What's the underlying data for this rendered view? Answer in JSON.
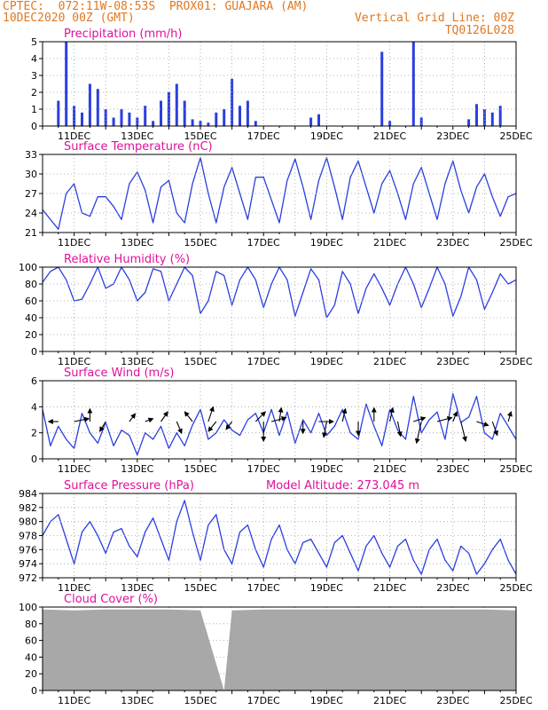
{
  "header": {
    "line1_left": "CPTEC:  072:11W-08:53S  PROX01: GUAJARA (AM)",
    "line2_left": "10DEC2020 00Z (GMT)",
    "line2_right": "Vertical Grid Line: 00Z",
    "line3_right": "TQ0126L028"
  },
  "colors": {
    "header_text": "#e07820",
    "title_text": "#e0109c",
    "series_line": "#2a3fe0",
    "wind_arrow": "#000000",
    "cloud_fill": "#a8a8a8",
    "grid": "#a0a0a0"
  },
  "x_axis": {
    "start": "10DEC",
    "end": "25DEC",
    "ticks": [
      "11DEC",
      "13DEC",
      "15DEC",
      "17DEC",
      "19DEC",
      "21DEC",
      "23DEC",
      "25DEC"
    ]
  },
  "chart_data": [
    {
      "id": "precip",
      "type": "bar",
      "title": "Precipitation (mm/h)",
      "ylim": [
        0,
        5
      ],
      "yticks": [
        0,
        1,
        2,
        3,
        4,
        5
      ],
      "grid": true,
      "x": [
        "10DEC 12Z",
        "10DEC 18Z",
        "11DEC 00Z",
        "11DEC 06Z",
        "11DEC 12Z",
        "11DEC 18Z",
        "12DEC 00Z",
        "12DEC 06Z",
        "12DEC 12Z",
        "12DEC 18Z",
        "13DEC 00Z",
        "13DEC 06Z",
        "13DEC 12Z",
        "13DEC 18Z",
        "14DEC 00Z",
        "14DEC 06Z",
        "14DEC 12Z",
        "14DEC 18Z",
        "15DEC 00Z",
        "15DEC 06Z",
        "15DEC 12Z",
        "15DEC 18Z",
        "16DEC 00Z",
        "16DEC 06Z",
        "16DEC 12Z",
        "16DEC 18Z",
        "18DEC 12Z",
        "18DEC 18Z",
        "20DEC 18Z",
        "21DEC 00Z",
        "21DEC 18Z",
        "22DEC 00Z",
        "23DEC 12Z",
        "23DEC 18Z",
        "24DEC 00Z",
        "24DEC 06Z",
        "24DEC 12Z"
      ],
      "values": [
        1.5,
        5.0,
        1.2,
        0.8,
        2.5,
        2.2,
        1.0,
        0.5,
        1.0,
        0.8,
        0.5,
        1.2,
        0.3,
        1.5,
        2.0,
        2.5,
        1.5,
        0.4,
        0.3,
        0.2,
        0.8,
        1.0,
        2.8,
        1.2,
        1.5,
        0.3,
        0.5,
        0.7,
        4.4,
        0.3,
        5.0,
        0.5,
        0.4,
        1.3,
        1.0,
        0.8,
        1.2
      ]
    },
    {
      "id": "temp",
      "type": "line",
      "title": "Surface Temperature (nC)",
      "ylim": [
        21,
        33
      ],
      "yticks": [
        21,
        24,
        27,
        30,
        33
      ],
      "grid": true,
      "x": [
        "10DEC 00Z",
        "10DEC 12Z",
        "10DEC 18Z",
        "11DEC 00Z",
        "11DEC 06Z",
        "11DEC 12Z",
        "11DEC 18Z",
        "12DEC 00Z",
        "12DEC 06Z",
        "12DEC 12Z",
        "12DEC 18Z",
        "13DEC 00Z",
        "13DEC 06Z",
        "13DEC 12Z",
        "13DEC 18Z",
        "14DEC 00Z",
        "14DEC 06Z",
        "14DEC 12Z",
        "14DEC 18Z",
        "15DEC 00Z",
        "15DEC 06Z",
        "15DEC 12Z",
        "15DEC 18Z",
        "16DEC 00Z",
        "16DEC 06Z",
        "16DEC 12Z",
        "16DEC 18Z",
        "17DEC 00Z",
        "17DEC 06Z",
        "17DEC 12Z",
        "17DEC 18Z",
        "18DEC 00Z",
        "18DEC 06Z",
        "18DEC 12Z",
        "18DEC 18Z",
        "19DEC 00Z",
        "19DEC 06Z",
        "19DEC 12Z",
        "19DEC 18Z",
        "20DEC 00Z",
        "20DEC 06Z",
        "20DEC 12Z",
        "20DEC 18Z",
        "21DEC 00Z",
        "21DEC 06Z",
        "21DEC 12Z",
        "21DEC 18Z",
        "22DEC 00Z",
        "22DEC 06Z",
        "22DEC 12Z",
        "22DEC 18Z",
        "23DEC 00Z",
        "23DEC 06Z",
        "23DEC 12Z",
        "23DEC 18Z",
        "24DEC 00Z",
        "24DEC 06Z",
        "24DEC 12Z",
        "24DEC 18Z",
        "25DEC 00Z"
      ],
      "values": [
        24.5,
        21.5,
        27.0,
        28.5,
        24.0,
        23.5,
        26.5,
        26.5,
        25.0,
        23.0,
        28.5,
        30.3,
        27.5,
        22.5,
        28.0,
        29.0,
        24.0,
        22.5,
        28.5,
        32.5,
        27.0,
        22.5,
        28.0,
        31.0,
        27.0,
        23.0,
        29.5,
        29.5,
        26.0,
        22.5,
        29.0,
        32.3,
        28.0,
        23.0,
        29.0,
        32.5,
        28.0,
        23.0,
        29.5,
        32.0,
        28.0,
        24.0,
        28.5,
        30.5,
        27.0,
        23.0,
        28.5,
        31.0,
        27.0,
        23.0,
        28.5,
        32.0,
        27.5,
        24.0,
        28.0,
        30.0,
        26.5,
        23.5,
        26.5,
        27.0
      ]
    },
    {
      "id": "rh",
      "type": "line",
      "title": "Relative Humidity (%)",
      "ylim": [
        0,
        100
      ],
      "yticks": [
        0,
        20,
        40,
        60,
        80,
        100
      ],
      "grid": true,
      "x": [
        "10DEC 00Z",
        "10DEC 06Z",
        "10DEC 12Z",
        "10DEC 18Z",
        "11DEC 00Z",
        "11DEC 06Z",
        "11DEC 12Z",
        "11DEC 18Z",
        "12DEC 00Z",
        "12DEC 06Z",
        "12DEC 12Z",
        "12DEC 18Z",
        "13DEC 00Z",
        "13DEC 06Z",
        "13DEC 12Z",
        "13DEC 18Z",
        "14DEC 00Z",
        "14DEC 06Z",
        "14DEC 12Z",
        "14DEC 18Z",
        "15DEC 00Z",
        "15DEC 06Z",
        "15DEC 12Z",
        "15DEC 18Z",
        "16DEC 00Z",
        "16DEC 06Z",
        "16DEC 12Z",
        "16DEC 18Z",
        "17DEC 00Z",
        "17DEC 06Z",
        "17DEC 12Z",
        "17DEC 18Z",
        "18DEC 00Z",
        "18DEC 06Z",
        "18DEC 12Z",
        "18DEC 18Z",
        "19DEC 00Z",
        "19DEC 06Z",
        "19DEC 12Z",
        "19DEC 18Z",
        "20DEC 00Z",
        "20DEC 06Z",
        "20DEC 12Z",
        "20DEC 18Z",
        "21DEC 00Z",
        "21DEC 06Z",
        "21DEC 12Z",
        "21DEC 18Z",
        "22DEC 00Z",
        "22DEC 06Z",
        "22DEC 12Z",
        "22DEC 18Z",
        "23DEC 00Z",
        "23DEC 06Z",
        "23DEC 12Z",
        "23DEC 18Z",
        "24DEC 00Z",
        "24DEC 06Z",
        "24DEC 12Z",
        "24DEC 18Z",
        "25DEC 00Z"
      ],
      "values": [
        82,
        95,
        100,
        85,
        60,
        62,
        80,
        100,
        75,
        80,
        100,
        85,
        60,
        70,
        98,
        95,
        60,
        80,
        100,
        90,
        45,
        60,
        95,
        90,
        55,
        85,
        100,
        85,
        52,
        80,
        100,
        85,
        42,
        70,
        98,
        85,
        40,
        55,
        95,
        80,
        45,
        75,
        92,
        75,
        55,
        80,
        100,
        80,
        52,
        75,
        100,
        80,
        42,
        65,
        100,
        85,
        50,
        70,
        92,
        80,
        85
      ]
    },
    {
      "id": "wind",
      "type": "line",
      "title": "Surface Wind (m/s)",
      "ylim": [
        0,
        6
      ],
      "yticks": [
        0,
        2,
        4,
        6
      ],
      "grid": true,
      "x": [
        "10DEC 00Z",
        "10DEC 06Z",
        "10DEC 12Z",
        "10DEC 18Z",
        "11DEC 00Z",
        "11DEC 06Z",
        "11DEC 12Z",
        "11DEC 18Z",
        "12DEC 00Z",
        "12DEC 06Z",
        "12DEC 12Z",
        "12DEC 18Z",
        "13DEC 00Z",
        "13DEC 06Z",
        "13DEC 12Z",
        "13DEC 18Z",
        "14DEC 00Z",
        "14DEC 06Z",
        "14DEC 12Z",
        "14DEC 18Z",
        "15DEC 00Z",
        "15DEC 06Z",
        "15DEC 12Z",
        "15DEC 18Z",
        "16DEC 00Z",
        "16DEC 06Z",
        "16DEC 12Z",
        "16DEC 18Z",
        "17DEC 00Z",
        "17DEC 06Z",
        "17DEC 12Z",
        "17DEC 18Z",
        "18DEC 00Z",
        "18DEC 06Z",
        "18DEC 12Z",
        "18DEC 18Z",
        "19DEC 00Z",
        "19DEC 06Z",
        "19DEC 12Z",
        "19DEC 18Z",
        "20DEC 00Z",
        "20DEC 06Z",
        "20DEC 12Z",
        "20DEC 18Z",
        "21DEC 00Z",
        "21DEC 06Z",
        "21DEC 12Z",
        "21DEC 18Z",
        "22DEC 00Z",
        "22DEC 06Z",
        "22DEC 12Z",
        "22DEC 18Z",
        "23DEC 00Z",
        "23DEC 06Z",
        "23DEC 12Z",
        "23DEC 18Z",
        "24DEC 00Z",
        "24DEC 06Z",
        "24DEC 12Z",
        "24DEC 18Z",
        "25DEC 00Z"
      ],
      "values": [
        3.8,
        1.0,
        2.5,
        1.5,
        0.8,
        3.5,
        2.0,
        1.2,
        2.8,
        1.0,
        2.2,
        1.8,
        0.3,
        2.0,
        1.5,
        2.5,
        0.8,
        2.0,
        1.0,
        2.6,
        3.8,
        1.5,
        2.0,
        3.0,
        2.2,
        1.8,
        3.0,
        3.5,
        2.0,
        3.8,
        1.8,
        3.6,
        1.2,
        3.0,
        2.0,
        3.5,
        1.8,
        2.5,
        3.8,
        2.0,
        1.5,
        4.2,
        2.5,
        1.0,
        3.8,
        2.2,
        1.5,
        4.8,
        2.0,
        3.0,
        3.6,
        1.5,
        5.0,
        2.8,
        3.2,
        4.8,
        2.0,
        1.5,
        3.5,
        2.5,
        1.5
      ],
      "vectors": [
        {
          "x": "10DEC 12Z",
          "u": -1.0,
          "v": 0.0
        },
        {
          "x": "11DEC 00Z",
          "u": 1.5,
          "v": 0.3
        },
        {
          "x": "11DEC 12Z",
          "u": 0.0,
          "v": 1.3
        },
        {
          "x": "12DEC 00Z",
          "u": -0.6,
          "v": -1.0
        },
        {
          "x": "12DEC 18Z",
          "u": 0.6,
          "v": 0.8
        },
        {
          "x": "13DEC 06Z",
          "u": 0.8,
          "v": 0.3
        },
        {
          "x": "13DEC 18Z",
          "u": 0.7,
          "v": 1.0
        },
        {
          "x": "14DEC 06Z",
          "u": 0.5,
          "v": -1.2
        },
        {
          "x": "14DEC 18Z",
          "u": -0.8,
          "v": 1.0
        },
        {
          "x": "15DEC 06Z",
          "u": 0.5,
          "v": 1.5
        },
        {
          "x": "15DEC 12Z",
          "u": -0.8,
          "v": -1.0
        },
        {
          "x": "16DEC 00Z",
          "u": -0.6,
          "v": -0.8
        },
        {
          "x": "16DEC 18Z",
          "u": 1.0,
          "v": 1.0
        },
        {
          "x": "17DEC 00Z",
          "u": 0.0,
          "v": -2.0
        },
        {
          "x": "17DEC 06Z",
          "u": 1.5,
          "v": 0.4
        },
        {
          "x": "17DEC 12Z",
          "u": 0.2,
          "v": 1.4
        },
        {
          "x": "18DEC 06Z",
          "u": 0.0,
          "v": -1.2
        },
        {
          "x": "18DEC 18Z",
          "u": 1.5,
          "v": 0.0
        },
        {
          "x": "19DEC 00Z",
          "u": -0.3,
          "v": -1.6
        },
        {
          "x": "19DEC 12Z",
          "u": 0.3,
          "v": 1.3
        },
        {
          "x": "20DEC 00Z",
          "u": 0.0,
          "v": -1.4
        },
        {
          "x": "20DEC 12Z",
          "u": 0.0,
          "v": 1.4
        },
        {
          "x": "21DEC 00Z",
          "u": 0.3,
          "v": 1.4
        },
        {
          "x": "21DEC 06Z",
          "u": 0.3,
          "v": -1.5
        },
        {
          "x": "21DEC 18Z",
          "u": 1.2,
          "v": 0.4
        },
        {
          "x": "22DEC 00Z",
          "u": -0.5,
          "v": -2.2
        },
        {
          "x": "22DEC 12Z",
          "u": 1.5,
          "v": 0.4
        },
        {
          "x": "23DEC 00Z",
          "u": 0.4,
          "v": 1.0
        },
        {
          "x": "23DEC 06Z",
          "u": 0.5,
          "v": -2.0
        },
        {
          "x": "23DEC 18Z",
          "u": 1.2,
          "v": -0.4
        },
        {
          "x": "24DEC 06Z",
          "u": 0.5,
          "v": -1.4
        },
        {
          "x": "24DEC 18Z",
          "u": 0.3,
          "v": 1.0
        }
      ]
    },
    {
      "id": "pres",
      "type": "line",
      "title": "Surface Pressure (hPa)",
      "annotation": "Model Altitude: 273.045 m",
      "ylim": [
        972,
        984
      ],
      "yticks": [
        972,
        974,
        976,
        978,
        980,
        982,
        984
      ],
      "grid": true,
      "x": [
        "10DEC 00Z",
        "10DEC 06Z",
        "10DEC 12Z",
        "10DEC 18Z",
        "11DEC 00Z",
        "11DEC 06Z",
        "11DEC 12Z",
        "11DEC 18Z",
        "12DEC 00Z",
        "12DEC 06Z",
        "12DEC 12Z",
        "12DEC 18Z",
        "13DEC 00Z",
        "13DEC 06Z",
        "13DEC 12Z",
        "13DEC 18Z",
        "14DEC 00Z",
        "14DEC 06Z",
        "14DEC 12Z",
        "14DEC 18Z",
        "15DEC 00Z",
        "15DEC 06Z",
        "15DEC 12Z",
        "15DEC 18Z",
        "16DEC 00Z",
        "16DEC 06Z",
        "16DEC 12Z",
        "16DEC 18Z",
        "17DEC 00Z",
        "17DEC 06Z",
        "17DEC 12Z",
        "17DEC 18Z",
        "18DEC 00Z",
        "18DEC 06Z",
        "18DEC 12Z",
        "18DEC 18Z",
        "19DEC 00Z",
        "19DEC 06Z",
        "19DEC 12Z",
        "19DEC 18Z",
        "20DEC 00Z",
        "20DEC 06Z",
        "20DEC 12Z",
        "20DEC 18Z",
        "21DEC 00Z",
        "21DEC 06Z",
        "21DEC 12Z",
        "21DEC 18Z",
        "22DEC 00Z",
        "22DEC 06Z",
        "22DEC 12Z",
        "22DEC 18Z",
        "23DEC 00Z",
        "23DEC 06Z",
        "23DEC 12Z",
        "23DEC 18Z",
        "24DEC 00Z",
        "24DEC 06Z",
        "24DEC 12Z",
        "24DEC 18Z",
        "25DEC 00Z"
      ],
      "values": [
        978.0,
        980.0,
        981.0,
        977.5,
        974.0,
        978.5,
        980.0,
        978.0,
        975.5,
        978.5,
        979.0,
        976.5,
        975.0,
        978.5,
        980.5,
        977.5,
        974.5,
        980.0,
        983.0,
        978.5,
        974.5,
        979.5,
        981.0,
        976.0,
        974.0,
        978.5,
        979.5,
        976.0,
        973.5,
        977.5,
        979.5,
        976.0,
        974.0,
        977.0,
        977.5,
        975.5,
        973.5,
        977.0,
        978.0,
        975.5,
        973.0,
        976.5,
        978.0,
        975.5,
        973.5,
        976.5,
        977.5,
        974.5,
        972.5,
        976.0,
        977.5,
        974.5,
        973.0,
        976.5,
        975.5,
        972.5,
        974.0,
        976.0,
        977.5,
        974.5,
        972.5
      ]
    },
    {
      "id": "cloud",
      "type": "area",
      "title": "Cloud Cover (%)",
      "ylim": [
        0,
        100
      ],
      "yticks": [
        0,
        20,
        40,
        60,
        80,
        100
      ],
      "grid": true,
      "x": [
        "10DEC 00Z",
        "11DEC 00Z",
        "12DEC 00Z",
        "13DEC 00Z",
        "14DEC 00Z",
        "15DEC 00Z",
        "15DEC 18Z",
        "16DEC 00Z",
        "17DEC 00Z",
        "18DEC 00Z",
        "19DEC 00Z",
        "20DEC 00Z",
        "21DEC 00Z",
        "22DEC 00Z",
        "23DEC 00Z",
        "24DEC 00Z",
        "25DEC 00Z"
      ],
      "values": [
        97,
        96,
        97,
        97,
        97,
        96,
        0,
        96,
        97,
        97,
        97,
        97,
        97,
        97,
        97,
        97,
        96
      ]
    }
  ]
}
